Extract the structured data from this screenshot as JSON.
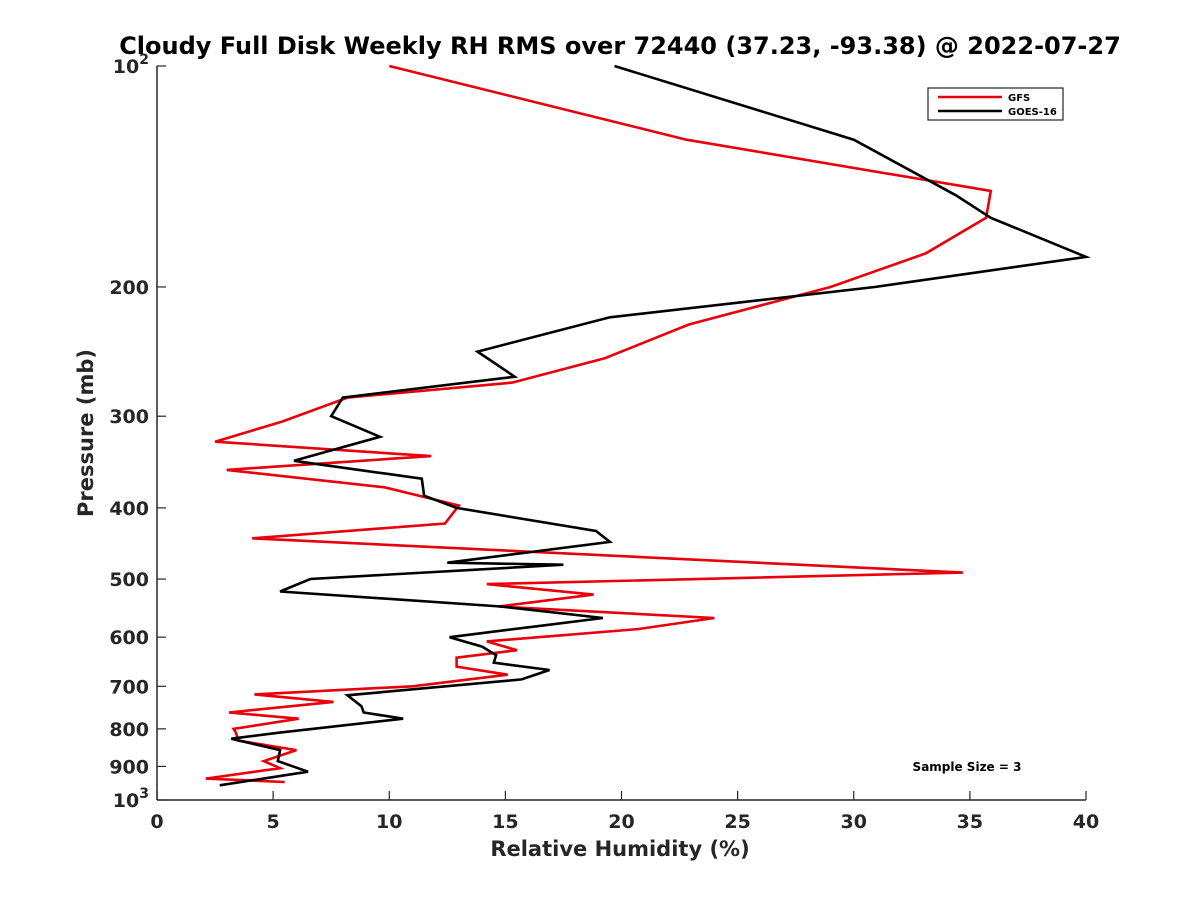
{
  "chart_data": {
    "type": "line",
    "title": "Cloudy Full Disk Weekly RH RMS over 72440 (37.23, -93.38) @ 2022-07-27",
    "xlabel": "Relative Humidity (%)",
    "ylabel": "Pressure (mb)",
    "xlim": [
      0,
      40
    ],
    "ylim": [
      100,
      1000
    ],
    "yscale": "log",
    "y_reversed": true,
    "xticks": [
      0,
      5,
      10,
      15,
      20,
      25,
      30,
      35,
      40
    ],
    "yticks": [
      100,
      200,
      300,
      400,
      500,
      600,
      700,
      800,
      900,
      1000
    ],
    "ytick_labels": [
      {
        "base": "10",
        "exp": "2"
      },
      {
        "base": "200",
        "exp": ""
      },
      {
        "base": "300",
        "exp": ""
      },
      {
        "base": "400",
        "exp": ""
      },
      {
        "base": "500",
        "exp": ""
      },
      {
        "base": "600",
        "exp": ""
      },
      {
        "base": "700",
        "exp": ""
      },
      {
        "base": "800",
        "exp": ""
      },
      {
        "base": "900",
        "exp": ""
      },
      {
        "base": "10",
        "exp": "3"
      }
    ],
    "grid": false,
    "legend_position": "top-right",
    "annotation": "Sample Size = 3",
    "series": [
      {
        "name": "GFS",
        "color": "#e8000b",
        "points": [
          [
            10.0,
            100
          ],
          [
            22.8,
            126
          ],
          [
            35.9,
            148
          ],
          [
            35.7,
            161
          ],
          [
            33.1,
            180
          ],
          [
            29.0,
            200
          ],
          [
            22.9,
            225
          ],
          [
            19.3,
            250
          ],
          [
            15.3,
            270
          ],
          [
            8.2,
            283
          ],
          [
            5.4,
            305
          ],
          [
            2.5,
            325
          ],
          [
            11.8,
            340
          ],
          [
            3.0,
            355
          ],
          [
            9.8,
            375
          ],
          [
            13.0,
            397
          ],
          [
            12.4,
            420
          ],
          [
            4.1,
            440
          ],
          [
            34.7,
            490
          ],
          [
            14.2,
            508
          ],
          [
            18.8,
            525
          ],
          [
            14.7,
            545
          ],
          [
            24.0,
            565
          ],
          [
            20.7,
            585
          ],
          [
            14.2,
            608
          ],
          [
            15.5,
            625
          ],
          [
            12.9,
            640
          ],
          [
            12.9,
            658
          ],
          [
            15.1,
            675
          ],
          [
            11.0,
            700
          ],
          [
            4.2,
            718
          ],
          [
            7.6,
            735
          ],
          [
            3.1,
            760
          ],
          [
            6.1,
            775
          ],
          [
            3.3,
            800
          ],
          [
            3.4,
            810
          ],
          [
            3.5,
            830
          ],
          [
            6.0,
            855
          ],
          [
            4.6,
            885
          ],
          [
            5.3,
            905
          ],
          [
            2.1,
            935
          ],
          [
            5.5,
            945
          ]
        ]
      },
      {
        "name": "GOES-16",
        "color": "#000000",
        "points": [
          [
            19.7,
            100
          ],
          [
            30.0,
            126
          ],
          [
            34.4,
            150
          ],
          [
            35.9,
            161
          ],
          [
            40.0,
            182
          ],
          [
            30.9,
            200
          ],
          [
            19.5,
            220
          ],
          [
            13.8,
            245
          ],
          [
            15.4,
            265
          ],
          [
            8.0,
            283
          ],
          [
            7.5,
            300
          ],
          [
            9.6,
            320
          ],
          [
            5.9,
            345
          ],
          [
            11.4,
            365
          ],
          [
            11.5,
            385
          ],
          [
            12.9,
            400
          ],
          [
            18.9,
            430
          ],
          [
            19.5,
            445
          ],
          [
            12.5,
            475
          ],
          [
            17.5,
            478
          ],
          [
            6.6,
            500
          ],
          [
            5.3,
            520
          ],
          [
            14.8,
            545
          ],
          [
            19.2,
            565
          ],
          [
            16.3,
            580
          ],
          [
            12.6,
            600
          ],
          [
            14.0,
            618
          ],
          [
            14.6,
            635
          ],
          [
            14.5,
            650
          ],
          [
            16.9,
            665
          ],
          [
            15.7,
            685
          ],
          [
            8.2,
            720
          ],
          [
            8.8,
            745
          ],
          [
            8.9,
            760
          ],
          [
            10.6,
            775
          ],
          [
            5.2,
            810
          ],
          [
            3.2,
            825
          ],
          [
            5.3,
            855
          ],
          [
            5.2,
            885
          ],
          [
            6.5,
            915
          ],
          [
            2.7,
            955
          ]
        ]
      }
    ]
  }
}
